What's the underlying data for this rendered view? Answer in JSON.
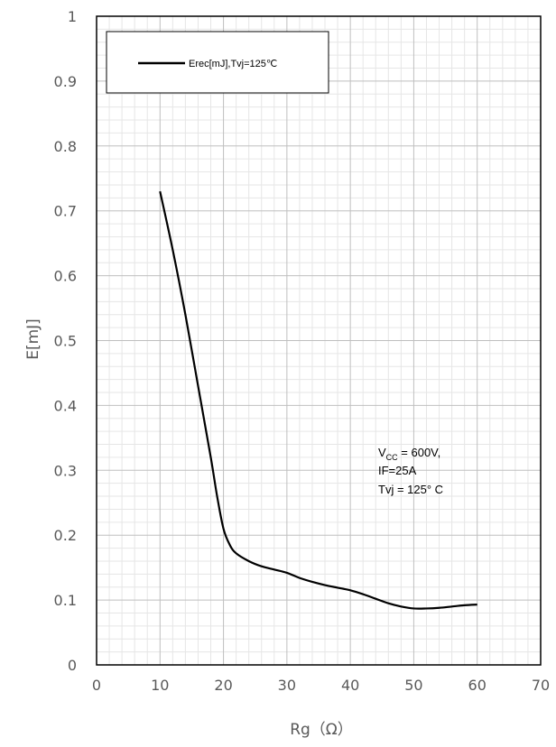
{
  "chart_data": {
    "type": "line",
    "title": "",
    "xlabel": "Rg（Ω）",
    "ylabel": "E[mJ]",
    "xlim": [
      0,
      70
    ],
    "ylim": [
      0,
      1
    ],
    "x_ticks": [
      "0",
      "10",
      "20",
      "30",
      "40",
      "50",
      "60",
      "70"
    ],
    "y_ticks": [
      "0",
      "0.1",
      "0.2",
      "0.3",
      "0.4",
      "0.5",
      "0.6",
      "0.7",
      "0.8",
      "0.9",
      "1"
    ],
    "grid": true,
    "legend_position": "top-left",
    "series": [
      {
        "name": "Erec[mJ],Tvj=125℃",
        "color": "#000000",
        "x": [
          10,
          12,
          14,
          16,
          18,
          19,
          20,
          21,
          22,
          24,
          26,
          28,
          30,
          32,
          34,
          36,
          38,
          40,
          42,
          44,
          46,
          48,
          50,
          52,
          54,
          56,
          58,
          60
        ],
        "y": [
          0.73,
          0.64,
          0.54,
          0.43,
          0.32,
          0.26,
          0.21,
          0.185,
          0.172,
          0.16,
          0.152,
          0.147,
          0.142,
          0.134,
          0.128,
          0.123,
          0.119,
          0.115,
          0.109,
          0.102,
          0.095,
          0.09,
          0.087,
          0.087,
          0.088,
          0.09,
          0.092,
          0.093
        ]
      }
    ],
    "annotation": {
      "line1_main": "V",
      "line1_sub": "CC",
      "line1_rest": " = 600V,",
      "line2": "IF=25A",
      "line3": "Tvj = 125° C"
    }
  }
}
